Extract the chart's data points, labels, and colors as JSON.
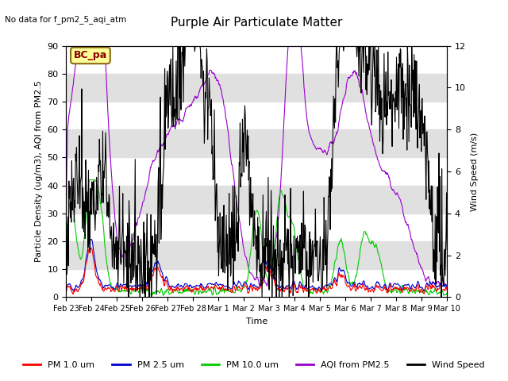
{
  "title": "Purple Air Particulate Matter",
  "subtitle": "No data for f_pm2_5_aqi_atm",
  "ylabel_left": "Particle Density (ug/m3), AQI from PM2.5",
  "ylabel_right": "Wind Speed (m/s)",
  "xlabel": "Time",
  "ylim_left": [
    0,
    90
  ],
  "ylim_right": [
    0,
    12
  ],
  "xtick_labels": [
    "Feb 23",
    "Feb 24",
    "Feb 25",
    "Feb 26",
    "Feb 27",
    "Feb 28",
    "Mar 1",
    "Mar 2",
    "Mar 3",
    "Mar 4",
    "Mar 5",
    "Mar 6",
    "Mar 7",
    "Mar 8",
    "Mar 9",
    "Mar 10"
  ],
  "legend_labels": [
    "PM 1.0 um",
    "PM 2.5 um",
    "PM 10.0 um",
    "AQI from PM2.5",
    "Wind Speed"
  ],
  "legend_colors": [
    "#ff0000",
    "#0000cd",
    "#00cc00",
    "#9900cc",
    "#000000"
  ],
  "annotation_text": "BC_pa",
  "annotation_color": "#8B0000",
  "annotation_bg": "#ffff99",
  "bg_band_color": "#e0e0e0",
  "title_fontsize": 11,
  "axis_fontsize": 8,
  "tick_fontsize": 8,
  "n_points": 800,
  "seed": 42
}
